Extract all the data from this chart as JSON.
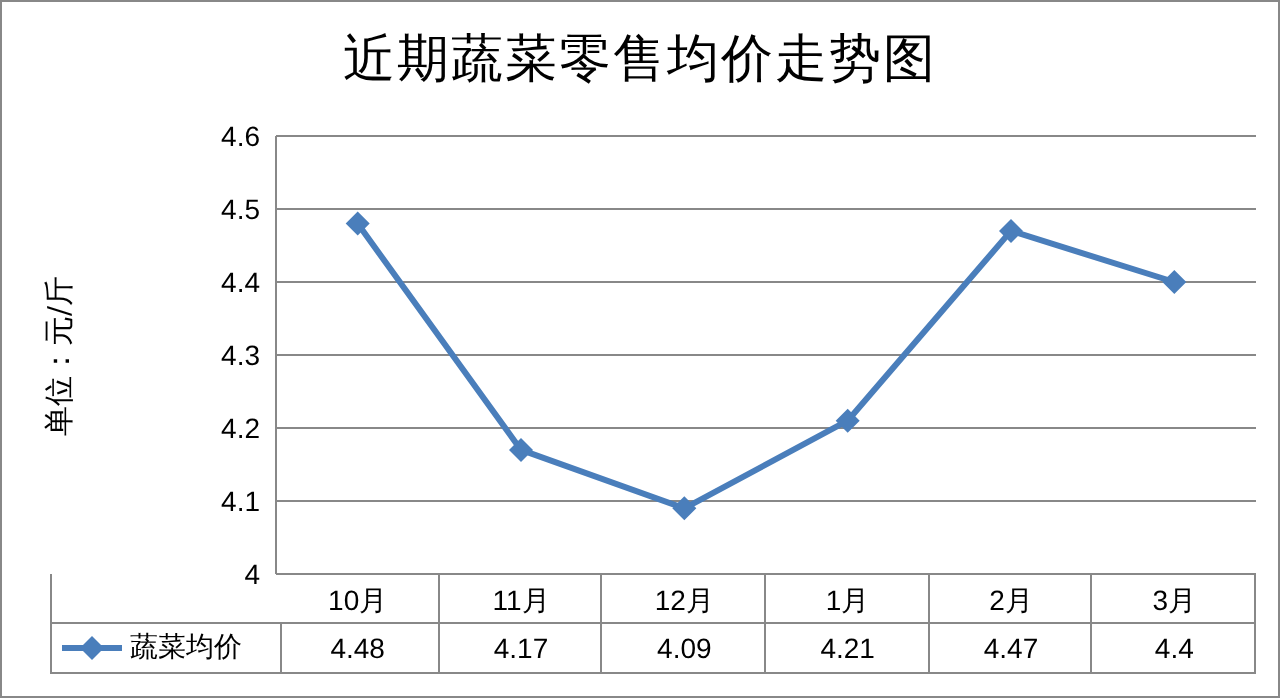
{
  "chart_data": {
    "type": "line",
    "title": "近期蔬菜零售均价走势图",
    "ylabel": "单位：元/斤",
    "categories": [
      "10月",
      "11月",
      "12月",
      "1月",
      "2月",
      "3月"
    ],
    "series": [
      {
        "name": "蔬菜均价",
        "color": "#4a7ebb",
        "values": [
          4.48,
          4.17,
          4.09,
          4.21,
          4.47,
          4.4
        ]
      }
    ],
    "ylim": [
      4,
      4.6
    ],
    "yticks": [
      4,
      4.1,
      4.2,
      4.3,
      4.4,
      4.5,
      4.6
    ],
    "grid": "y",
    "legend": "bottom",
    "marker": "diamond",
    "line_style": "solid",
    "data_labels": true
  }
}
